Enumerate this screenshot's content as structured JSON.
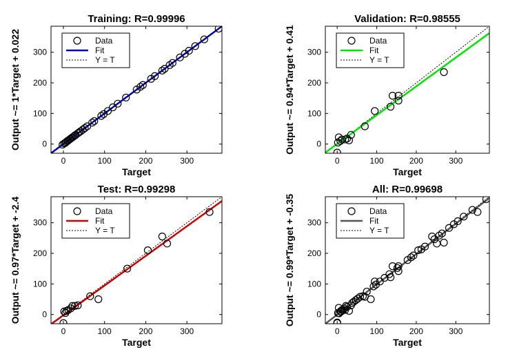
{
  "chart_data": [
    {
      "type": "scatter",
      "title": "Training: R=0.99996",
      "xlabel": "Target",
      "ylabel": "Output ~= 1*Target + 0.022",
      "xlim": [
        -30,
        385
      ],
      "ylim": [
        -30,
        385
      ],
      "xticks": [
        0,
        100,
        200,
        300
      ],
      "yticks": [
        0,
        100,
        200,
        300
      ],
      "fit": {
        "slope": 1.0,
        "intercept": 0.022,
        "color": "#0000b4"
      },
      "legend": [
        "Data",
        "Fit",
        "Y = T"
      ],
      "legend_position": "top-left",
      "points": [
        [
          -2,
          -2
        ],
        [
          2,
          2
        ],
        [
          5,
          4
        ],
        [
          7,
          7
        ],
        [
          10,
          10
        ],
        [
          12,
          12
        ],
        [
          15,
          15
        ],
        [
          17,
          17
        ],
        [
          20,
          20
        ],
        [
          22,
          22
        ],
        [
          25,
          25
        ],
        [
          28,
          28
        ],
        [
          30,
          30
        ],
        [
          35,
          35
        ],
        [
          38,
          38
        ],
        [
          42,
          42
        ],
        [
          47,
          47
        ],
        [
          52,
          52
        ],
        [
          58,
          58
        ],
        [
          70,
          70
        ],
        [
          75,
          75
        ],
        [
          92,
          92
        ],
        [
          98,
          98
        ],
        [
          108,
          108
        ],
        [
          120,
          120
        ],
        [
          132,
          132
        ],
        [
          152,
          152
        ],
        [
          178,
          178
        ],
        [
          187,
          187
        ],
        [
          193,
          193
        ],
        [
          213,
          213
        ],
        [
          222,
          222
        ],
        [
          240,
          240
        ],
        [
          246,
          246
        ],
        [
          258,
          258
        ],
        [
          265,
          265
        ],
        [
          283,
          283
        ],
        [
          295,
          295
        ],
        [
          305,
          305
        ],
        [
          320,
          320
        ],
        [
          342,
          342
        ],
        [
          377,
          377
        ]
      ]
    },
    {
      "type": "scatter",
      "title": "Validation: R=0.98555",
      "xlabel": "Target",
      "ylabel": "Output ~= 0.94*Target + 0.41",
      "xlim": [
        -30,
        385
      ],
      "ylim": [
        -30,
        385
      ],
      "xticks": [
        0,
        100,
        200,
        300
      ],
      "yticks": [
        0,
        100,
        200,
        300
      ],
      "fit": {
        "slope": 0.94,
        "intercept": 0.41,
        "color": "#00e600"
      },
      "legend": [
        "Data",
        "Fit",
        "Y = T"
      ],
      "legend_position": "top-left",
      "points": [
        [
          0,
          -28
        ],
        [
          2,
          5
        ],
        [
          4,
          22
        ],
        [
          8,
          10
        ],
        [
          12,
          15
        ],
        [
          20,
          15
        ],
        [
          25,
          18
        ],
        [
          30,
          12
        ],
        [
          35,
          30
        ],
        [
          70,
          58
        ],
        [
          95,
          108
        ],
        [
          135,
          122
        ],
        [
          140,
          158
        ],
        [
          155,
          142
        ],
        [
          155,
          158
        ],
        [
          270,
          235
        ]
      ]
    },
    {
      "type": "scatter",
      "title": "Test: R=0.99298",
      "xlabel": "Target",
      "ylabel": "Output ~= 0.97*Target + -2.4",
      "xlim": [
        -30,
        385
      ],
      "ylim": [
        -30,
        385
      ],
      "xticks": [
        0,
        100,
        200,
        300
      ],
      "yticks": [
        0,
        100,
        200,
        300
      ],
      "fit": {
        "slope": 0.97,
        "intercept": -2.4,
        "color": "#cc0000"
      },
      "legend": [
        "Data",
        "Fit",
        "Y = T"
      ],
      "legend_position": "top-left",
      "points": [
        [
          0,
          -28
        ],
        [
          2,
          10
        ],
        [
          5,
          5
        ],
        [
          8,
          12
        ],
        [
          12,
          15
        ],
        [
          18,
          20
        ],
        [
          22,
          28
        ],
        [
          28,
          28
        ],
        [
          35,
          30
        ],
        [
          65,
          60
        ],
        [
          85,
          50
        ],
        [
          155,
          150
        ],
        [
          205,
          210
        ],
        [
          240,
          255
        ],
        [
          252,
          232
        ],
        [
          355,
          335
        ]
      ]
    },
    {
      "type": "scatter",
      "title": "All: R=0.99698",
      "xlabel": "Target",
      "ylabel": "Output ~= 0.99*Target + -0.35",
      "xlim": [
        -30,
        385
      ],
      "ylim": [
        -30,
        385
      ],
      "xticks": [
        0,
        100,
        200,
        300
      ],
      "yticks": [
        0,
        100,
        200,
        300
      ],
      "fit": {
        "slope": 0.99,
        "intercept": -0.35,
        "color": "#555555"
      },
      "legend": [
        "Data",
        "Fit",
        "Y = T"
      ],
      "legend_position": "top-left",
      "points": [
        [
          0,
          -28
        ],
        [
          0,
          -26
        ],
        [
          2,
          5
        ],
        [
          4,
          22
        ],
        [
          5,
          4
        ],
        [
          8,
          10
        ],
        [
          10,
          10
        ],
        [
          12,
          15
        ],
        [
          15,
          15
        ],
        [
          18,
          20
        ],
        [
          20,
          15
        ],
        [
          22,
          28
        ],
        [
          25,
          25
        ],
        [
          30,
          12
        ],
        [
          35,
          30
        ],
        [
          38,
          38
        ],
        [
          42,
          42
        ],
        [
          47,
          47
        ],
        [
          52,
          52
        ],
        [
          58,
          58
        ],
        [
          65,
          60
        ],
        [
          70,
          58
        ],
        [
          75,
          75
        ],
        [
          85,
          50
        ],
        [
          92,
          92
        ],
        [
          95,
          108
        ],
        [
          98,
          98
        ],
        [
          108,
          108
        ],
        [
          120,
          120
        ],
        [
          132,
          132
        ],
        [
          135,
          122
        ],
        [
          140,
          158
        ],
        [
          152,
          152
        ],
        [
          155,
          142
        ],
        [
          155,
          158
        ],
        [
          178,
          178
        ],
        [
          187,
          187
        ],
        [
          193,
          193
        ],
        [
          205,
          210
        ],
        [
          213,
          213
        ],
        [
          222,
          222
        ],
        [
          240,
          255
        ],
        [
          246,
          246
        ],
        [
          252,
          232
        ],
        [
          258,
          258
        ],
        [
          265,
          265
        ],
        [
          270,
          235
        ],
        [
          283,
          283
        ],
        [
          295,
          295
        ],
        [
          305,
          305
        ],
        [
          320,
          320
        ],
        [
          342,
          342
        ],
        [
          355,
          335
        ],
        [
          377,
          377
        ]
      ]
    }
  ]
}
